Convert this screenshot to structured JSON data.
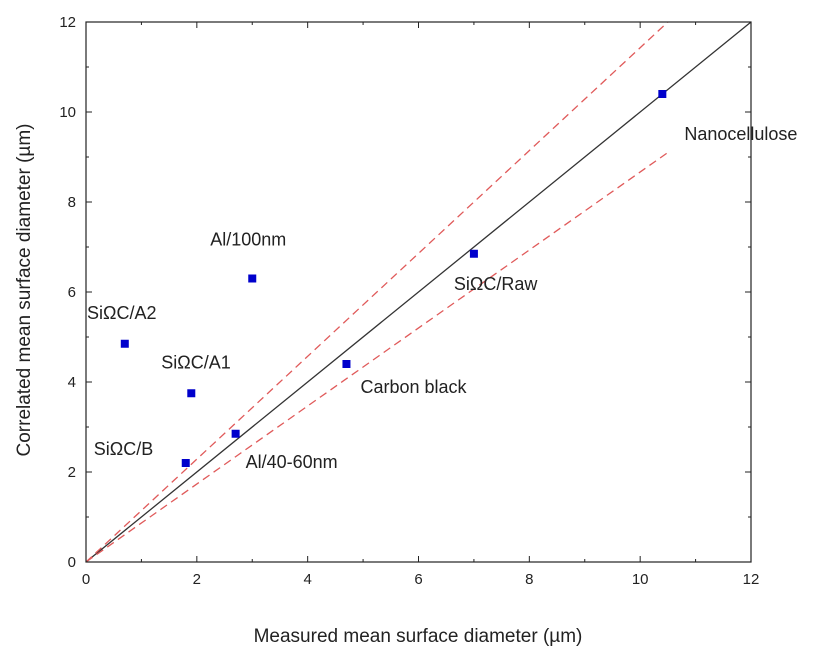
{
  "chart_data": {
    "type": "scatter",
    "title": "",
    "xlabel": "Measured mean surface diameter (µm)",
    "ylabel": "Correlated mean surface diameter (µm)",
    "xlim": [
      0,
      12
    ],
    "ylim": [
      0,
      12
    ],
    "xticks": [
      0,
      2,
      4,
      6,
      8,
      10,
      12
    ],
    "yticks": [
      0,
      2,
      4,
      6,
      8,
      10,
      12
    ],
    "grid": false,
    "colors": {
      "points": "#0000cc",
      "parity_line": "#333333",
      "band_lines": "#e05a5a"
    },
    "points": [
      {
        "label": "Nanocellulose",
        "x": 10.4,
        "y": 10.4
      },
      {
        "label": "Al/100nm",
        "x": 3.0,
        "y": 6.3
      },
      {
        "label": "SiΩC/Raw",
        "x": 7.0,
        "y": 6.85
      },
      {
        "label": "SiΩC/A2",
        "x": 0.7,
        "y": 4.85
      },
      {
        "label": "SiΩC/A1",
        "x": 1.9,
        "y": 3.75
      },
      {
        "label": "Carbon black",
        "x": 4.7,
        "y": 4.4
      },
      {
        "label": "SiΩC/B",
        "x": 1.8,
        "y": 2.2
      },
      {
        "label": "Al/40-60nm",
        "x": 2.7,
        "y": 2.85
      }
    ],
    "reference_lines": [
      {
        "kind": "parity",
        "style": "solid",
        "x": [
          0,
          12
        ],
        "y": [
          0,
          12
        ]
      },
      {
        "kind": "upper-bound",
        "style": "dashed",
        "x": [
          0,
          10.5
        ],
        "y": [
          0,
          12.0
        ]
      },
      {
        "kind": "lower-bound",
        "style": "dashed",
        "x": [
          0,
          10.5
        ],
        "y": [
          0,
          9.1
        ]
      }
    ]
  }
}
